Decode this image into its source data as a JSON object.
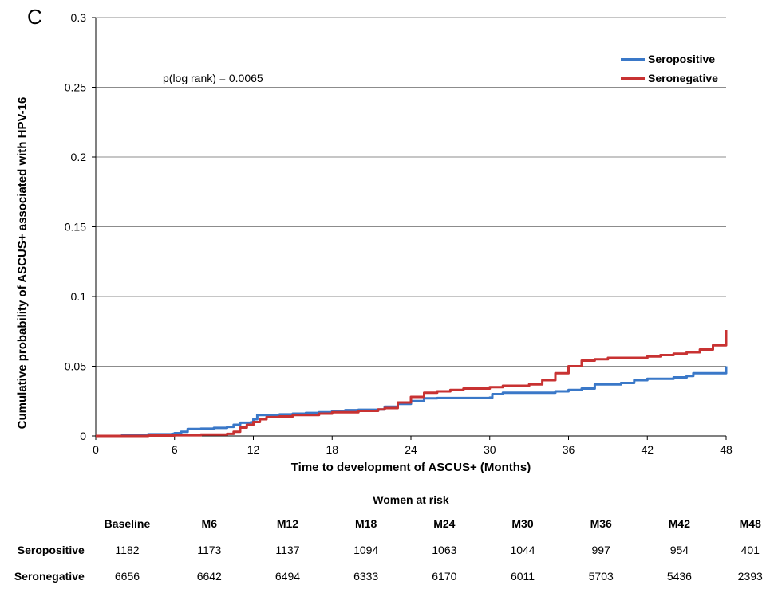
{
  "panel_label": "C",
  "colors": {
    "seropositive": "#3a78c8",
    "seronegative": "#c83232",
    "grid": "#8c8c8c"
  },
  "chart_data": {
    "type": "line",
    "title": "",
    "xlabel": "Time to development of ASCUS+ (Months)",
    "ylabel": "Cumulative probability of ASCUS+ associated with HPV-16",
    "xlim": [
      0,
      48
    ],
    "ylim": [
      0,
      0.3
    ],
    "x_ticks": [
      "0",
      "6",
      "12",
      "18",
      "24",
      "30",
      "36",
      "42",
      "48"
    ],
    "y_ticks": [
      "0",
      "0.05",
      "0.1",
      "0.15",
      "0.2",
      "0.25",
      "0.3"
    ],
    "grid": "horizontal",
    "legend_position": "top-right",
    "annotation": "p(log rank) = 0.0065",
    "series": [
      {
        "name": "Seropositive",
        "color": "#3a78c8",
        "points": [
          [
            0,
            0
          ],
          [
            2,
            0.0005
          ],
          [
            4,
            0.0012
          ],
          [
            5.8,
            0.0015
          ],
          [
            6,
            0.002
          ],
          [
            6.5,
            0.003
          ],
          [
            7,
            0.005
          ],
          [
            8,
            0.0052
          ],
          [
            9,
            0.0058
          ],
          [
            10,
            0.0065
          ],
          [
            10.5,
            0.008
          ],
          [
            11,
            0.0095
          ],
          [
            11.8,
            0.0098
          ],
          [
            12,
            0.012
          ],
          [
            12.3,
            0.015
          ],
          [
            14,
            0.0155
          ],
          [
            15,
            0.016
          ],
          [
            16,
            0.0165
          ],
          [
            17,
            0.017
          ],
          [
            18,
            0.018
          ],
          [
            19,
            0.0185
          ],
          [
            20,
            0.0188
          ],
          [
            21.5,
            0.019
          ],
          [
            22,
            0.021
          ],
          [
            23,
            0.023
          ],
          [
            24,
            0.025
          ],
          [
            25,
            0.027
          ],
          [
            26,
            0.0272
          ],
          [
            28,
            0.0272
          ],
          [
            30,
            0.0275
          ],
          [
            30.2,
            0.03
          ],
          [
            31,
            0.031
          ],
          [
            33,
            0.031
          ],
          [
            34,
            0.031
          ],
          [
            35,
            0.032
          ],
          [
            36,
            0.033
          ],
          [
            37,
            0.034
          ],
          [
            38,
            0.037
          ],
          [
            40,
            0.038
          ],
          [
            41,
            0.04
          ],
          [
            42,
            0.041
          ],
          [
            44,
            0.042
          ],
          [
            45,
            0.043
          ],
          [
            45.5,
            0.045
          ],
          [
            47,
            0.045
          ],
          [
            48,
            0.046
          ],
          [
            48,
            0.05
          ]
        ]
      },
      {
        "name": "Seronegative",
        "color": "#c83232",
        "points": [
          [
            0,
            0
          ],
          [
            4,
            0.0003
          ],
          [
            6,
            0.0005
          ],
          [
            8,
            0.001
          ],
          [
            10,
            0.0015
          ],
          [
            10.5,
            0.003
          ],
          [
            11,
            0.006
          ],
          [
            11.5,
            0.008
          ],
          [
            12,
            0.01
          ],
          [
            12.5,
            0.012
          ],
          [
            13,
            0.0135
          ],
          [
            14,
            0.014
          ],
          [
            15,
            0.015
          ],
          [
            17,
            0.016
          ],
          [
            18,
            0.017
          ],
          [
            20,
            0.018
          ],
          [
            21.5,
            0.019
          ],
          [
            22,
            0.02
          ],
          [
            23,
            0.024
          ],
          [
            24,
            0.028
          ],
          [
            25,
            0.031
          ],
          [
            26,
            0.032
          ],
          [
            27,
            0.033
          ],
          [
            28,
            0.034
          ],
          [
            30,
            0.035
          ],
          [
            31,
            0.036
          ],
          [
            33,
            0.037
          ],
          [
            34,
            0.04
          ],
          [
            35,
            0.045
          ],
          [
            36,
            0.05
          ],
          [
            37,
            0.054
          ],
          [
            38,
            0.055
          ],
          [
            39,
            0.056
          ],
          [
            40,
            0.056
          ],
          [
            42,
            0.057
          ],
          [
            43,
            0.058
          ],
          [
            44,
            0.059
          ],
          [
            45,
            0.06
          ],
          [
            46,
            0.062
          ],
          [
            47,
            0.065
          ],
          [
            48,
            0.076
          ]
        ]
      }
    ]
  },
  "risk_table": {
    "title": "Women at risk",
    "columns": [
      "Baseline",
      "M6",
      "M12",
      "M18",
      "M24",
      "M30",
      "M36",
      "M42",
      "M48"
    ],
    "rows": [
      {
        "label": "Seropositive",
        "values": [
          "1182",
          "1173",
          "1137",
          "1094",
          "1063",
          "1044",
          "997",
          "954",
          "401"
        ]
      },
      {
        "label": "Seronegative",
        "values": [
          "6656",
          "6642",
          "6494",
          "6333",
          "6170",
          "6011",
          "5703",
          "5436",
          "2393"
        ]
      }
    ]
  }
}
